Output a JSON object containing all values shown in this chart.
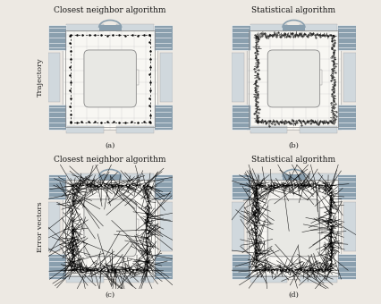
{
  "titles": [
    "Closest neighbor algorithm",
    "Statistical algorithm",
    "Closest neighbor algorithm",
    "Statistical algorithm"
  ],
  "sub_labels": [
    "(a)",
    "(b)",
    "(c)",
    "(d)"
  ],
  "y_label_top": "Trajectory",
  "y_label_bottom": "Error vectors",
  "bg_color": "#ede9e3",
  "floor_bg": "#f5f3ef",
  "wall_color": "#8a9fae",
  "title_fontsize": 6.5,
  "label_fontsize": 6,
  "ylabel_fontsize": 6
}
